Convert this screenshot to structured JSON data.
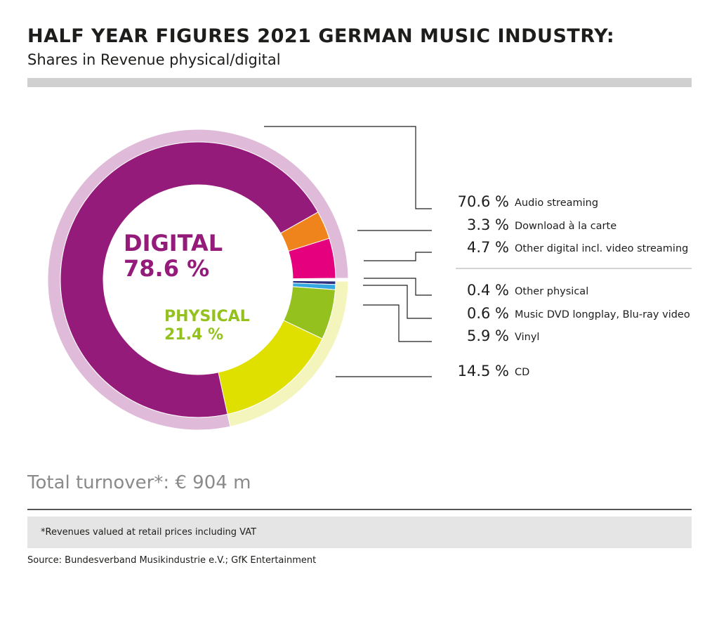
{
  "header": {
    "title": "HALF YEAR FIGURES 2021 GERMAN MUSIC INDUSTRY:",
    "subtitle": "Shares in Revenue physical/digital"
  },
  "chart_data": {
    "type": "pie",
    "groups": [
      {
        "name": "DIGITAL",
        "value_label": "78.6 %",
        "value": 78.6,
        "color": "#951b7b",
        "ring_color": "#dfbad9"
      },
      {
        "name": "PHYSICAL",
        "value_label": "21.4 %",
        "value": 21.4,
        "color": "#95c11f",
        "ring_color": "#f4f4bd"
      }
    ],
    "slices": [
      {
        "label": "Audio streaming",
        "value": 70.6,
        "value_label": "70.6 %",
        "group": "DIGITAL",
        "color": "#951b7b"
      },
      {
        "label": "Download à la carte",
        "value": 3.3,
        "value_label": "3.3 %",
        "group": "DIGITAL",
        "color": "#f0841c"
      },
      {
        "label": "Other digital incl. video streaming",
        "value": 4.7,
        "value_label": "4.7 %",
        "group": "DIGITAL",
        "color": "#e5007e"
      },
      {
        "label": "Other physical",
        "value": 0.4,
        "value_label": "0.4 %",
        "group": "PHYSICAL",
        "color": "#2a2f7f"
      },
      {
        "label": "Music DVD longplay, Blu-ray video",
        "value": 0.6,
        "value_label": "0.6 %",
        "group": "PHYSICAL",
        "color": "#35a8e0"
      },
      {
        "label": "Vinyl",
        "value": 5.9,
        "value_label": "5.9 %",
        "group": "PHYSICAL",
        "color": "#95c11f"
      },
      {
        "label": "CD",
        "value": 14.5,
        "value_label": "14.5 %",
        "group": "PHYSICAL",
        "color": "#dfdf00"
      }
    ]
  },
  "footer": {
    "total": "Total turnover*: € 904 m",
    "note": "*Revenues valued at retail prices including VAT",
    "source": "Source: Bundesverband Musikindustrie e.V.; GfK Entertainment"
  }
}
